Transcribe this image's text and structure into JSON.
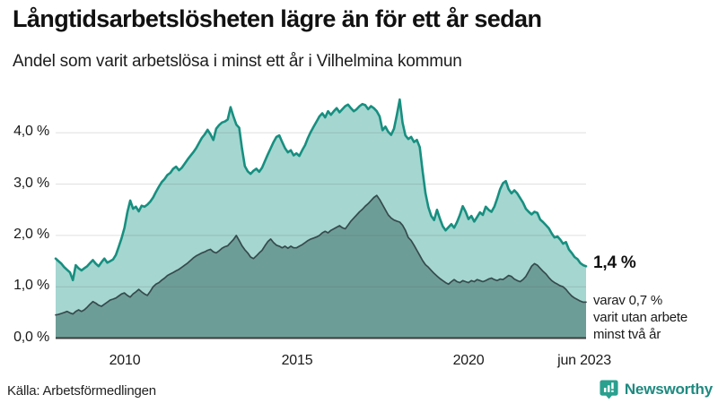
{
  "header": {
    "title": "Långtidsarbetslösheten lägre än för ett år sedan",
    "subtitle": "Andel som varit arbetslösa i minst ett år i Vilhelmina kommun"
  },
  "annotations": {
    "end_value": "1,4 %",
    "end_note": "varav 0,7 %\nvarit utan arbete\nminst två år"
  },
  "footer": {
    "source": "Källa: Arbetsförmedlingen",
    "brand": "Newsworthy"
  },
  "colors": {
    "teal_line": "#178f80",
    "teal_fill": "#a5d6d0",
    "dark_line": "#364a4d",
    "dark_fill": "#6d9d97",
    "grid": "#dddddd",
    "grid_overlay": "rgba(80,80,80,0.18)",
    "baseline": "#3b3b3b",
    "brand_icon": "#2aa08f",
    "brand_text": "#1e8a80"
  },
  "chart_data": {
    "type": "area",
    "title": "Långtidsarbetslösheten lägre än för ett år sedan",
    "subtitle": "Andel som varit arbetslösa i minst ett år i Vilhelmina kommun",
    "unit": "%",
    "frequency": "monthly",
    "x_start": "2008-01",
    "x_end": "2023-06",
    "ylim": [
      0,
      4.7
    ],
    "grid": true,
    "legend": "none",
    "ytick_values": [
      0,
      1,
      2,
      3,
      4
    ],
    "ytick_labels": [
      "0,0 %",
      "1,0 %",
      "2,0 %",
      "3,0 %",
      "4,0 %"
    ],
    "xticks": [
      {
        "index": 24,
        "label": "2010"
      },
      {
        "index": 84,
        "label": "2015"
      },
      {
        "index": 144,
        "label": "2020"
      },
      {
        "index": 185,
        "label": "jun 2023"
      }
    ],
    "series": [
      {
        "name": "Andel som varit arbetslösa i minst ett år",
        "color": "#178f80",
        "fill": "#a5d6d0",
        "stroke_width": 2.6,
        "end_label": "1,4 %",
        "values": [
          1.55,
          1.5,
          1.45,
          1.38,
          1.33,
          1.28,
          1.13,
          1.42,
          1.36,
          1.32,
          1.36,
          1.4,
          1.46,
          1.52,
          1.45,
          1.4,
          1.48,
          1.55,
          1.47,
          1.5,
          1.53,
          1.62,
          1.78,
          1.95,
          2.15,
          2.45,
          2.68,
          2.52,
          2.56,
          2.47,
          2.58,
          2.56,
          2.6,
          2.66,
          2.74,
          2.85,
          2.95,
          3.04,
          3.1,
          3.18,
          3.22,
          3.3,
          3.34,
          3.27,
          3.32,
          3.4,
          3.48,
          3.55,
          3.62,
          3.7,
          3.8,
          3.9,
          3.97,
          4.06,
          3.97,
          3.86,
          4.08,
          4.15,
          4.2,
          4.22,
          4.26,
          4.5,
          4.32,
          4.16,
          4.1,
          3.7,
          3.35,
          3.25,
          3.2,
          3.26,
          3.3,
          3.24,
          3.32,
          3.45,
          3.58,
          3.7,
          3.82,
          3.92,
          3.95,
          3.82,
          3.7,
          3.62,
          3.66,
          3.56,
          3.6,
          3.55,
          3.66,
          3.76,
          3.9,
          4.02,
          4.12,
          4.22,
          4.32,
          4.38,
          4.3,
          4.42,
          4.35,
          4.42,
          4.48,
          4.4,
          4.46,
          4.52,
          4.55,
          4.48,
          4.42,
          4.46,
          4.52,
          4.56,
          4.54,
          4.46,
          4.52,
          4.48,
          4.42,
          4.32,
          4.05,
          4.12,
          4.02,
          3.96,
          4.08,
          4.35,
          4.65,
          4.2,
          3.95,
          3.88,
          3.92,
          3.82,
          3.86,
          3.72,
          3.25,
          2.82,
          2.55,
          2.38,
          2.3,
          2.5,
          2.33,
          2.18,
          2.1,
          2.16,
          2.22,
          2.15,
          2.26,
          2.4,
          2.57,
          2.46,
          2.32,
          2.38,
          2.27,
          2.36,
          2.45,
          2.4,
          2.56,
          2.5,
          2.46,
          2.56,
          2.72,
          2.9,
          3.02,
          3.06,
          2.9,
          2.82,
          2.88,
          2.82,
          2.73,
          2.64,
          2.52,
          2.46,
          2.41,
          2.46,
          2.44,
          2.31,
          2.26,
          2.2,
          2.14,
          2.04,
          1.96,
          1.98,
          1.92,
          1.84,
          1.87,
          1.73,
          1.66,
          1.58,
          1.54,
          1.46,
          1.42,
          1.4
        ]
      },
      {
        "name": "varav utan arbete minst två år",
        "color": "#364a4d",
        "fill": "#6d9d97",
        "stroke_width": 1.7,
        "end_label": "varav 0,7 % varit utan arbete minst två år",
        "values": [
          0.45,
          0.46,
          0.48,
          0.5,
          0.52,
          0.49,
          0.47,
          0.52,
          0.55,
          0.52,
          0.55,
          0.6,
          0.66,
          0.71,
          0.68,
          0.64,
          0.62,
          0.66,
          0.7,
          0.74,
          0.76,
          0.78,
          0.82,
          0.86,
          0.88,
          0.83,
          0.8,
          0.86,
          0.9,
          0.95,
          0.9,
          0.86,
          0.83,
          0.91,
          1.0,
          1.05,
          1.08,
          1.13,
          1.17,
          1.22,
          1.25,
          1.28,
          1.31,
          1.34,
          1.38,
          1.42,
          1.46,
          1.51,
          1.56,
          1.6,
          1.63,
          1.66,
          1.68,
          1.71,
          1.73,
          1.68,
          1.66,
          1.7,
          1.75,
          1.78,
          1.8,
          1.86,
          1.92,
          2.0,
          1.9,
          1.8,
          1.72,
          1.66,
          1.58,
          1.55,
          1.6,
          1.66,
          1.71,
          1.8,
          1.88,
          1.93,
          1.86,
          1.81,
          1.79,
          1.76,
          1.79,
          1.75,
          1.79,
          1.76,
          1.76,
          1.79,
          1.82,
          1.86,
          1.9,
          1.93,
          1.95,
          1.97,
          2.0,
          2.05,
          2.08,
          2.05,
          2.1,
          2.13,
          2.16,
          2.19,
          2.15,
          2.13,
          2.2,
          2.28,
          2.34,
          2.4,
          2.46,
          2.51,
          2.57,
          2.62,
          2.68,
          2.74,
          2.78,
          2.7,
          2.6,
          2.5,
          2.4,
          2.34,
          2.3,
          2.28,
          2.26,
          2.2,
          2.1,
          1.96,
          1.9,
          1.81,
          1.71,
          1.61,
          1.51,
          1.43,
          1.38,
          1.32,
          1.26,
          1.21,
          1.16,
          1.12,
          1.08,
          1.05,
          1.1,
          1.14,
          1.1,
          1.08,
          1.12,
          1.1,
          1.08,
          1.12,
          1.1,
          1.14,
          1.12,
          1.1,
          1.12,
          1.15,
          1.17,
          1.14,
          1.12,
          1.15,
          1.14,
          1.18,
          1.22,
          1.2,
          1.15,
          1.12,
          1.1,
          1.14,
          1.2,
          1.3,
          1.4,
          1.45,
          1.42,
          1.36,
          1.3,
          1.25,
          1.18,
          1.12,
          1.08,
          1.05,
          1.02,
          1.0,
          0.95,
          0.88,
          0.82,
          0.78,
          0.75,
          0.72,
          0.7,
          0.7
        ]
      }
    ]
  }
}
